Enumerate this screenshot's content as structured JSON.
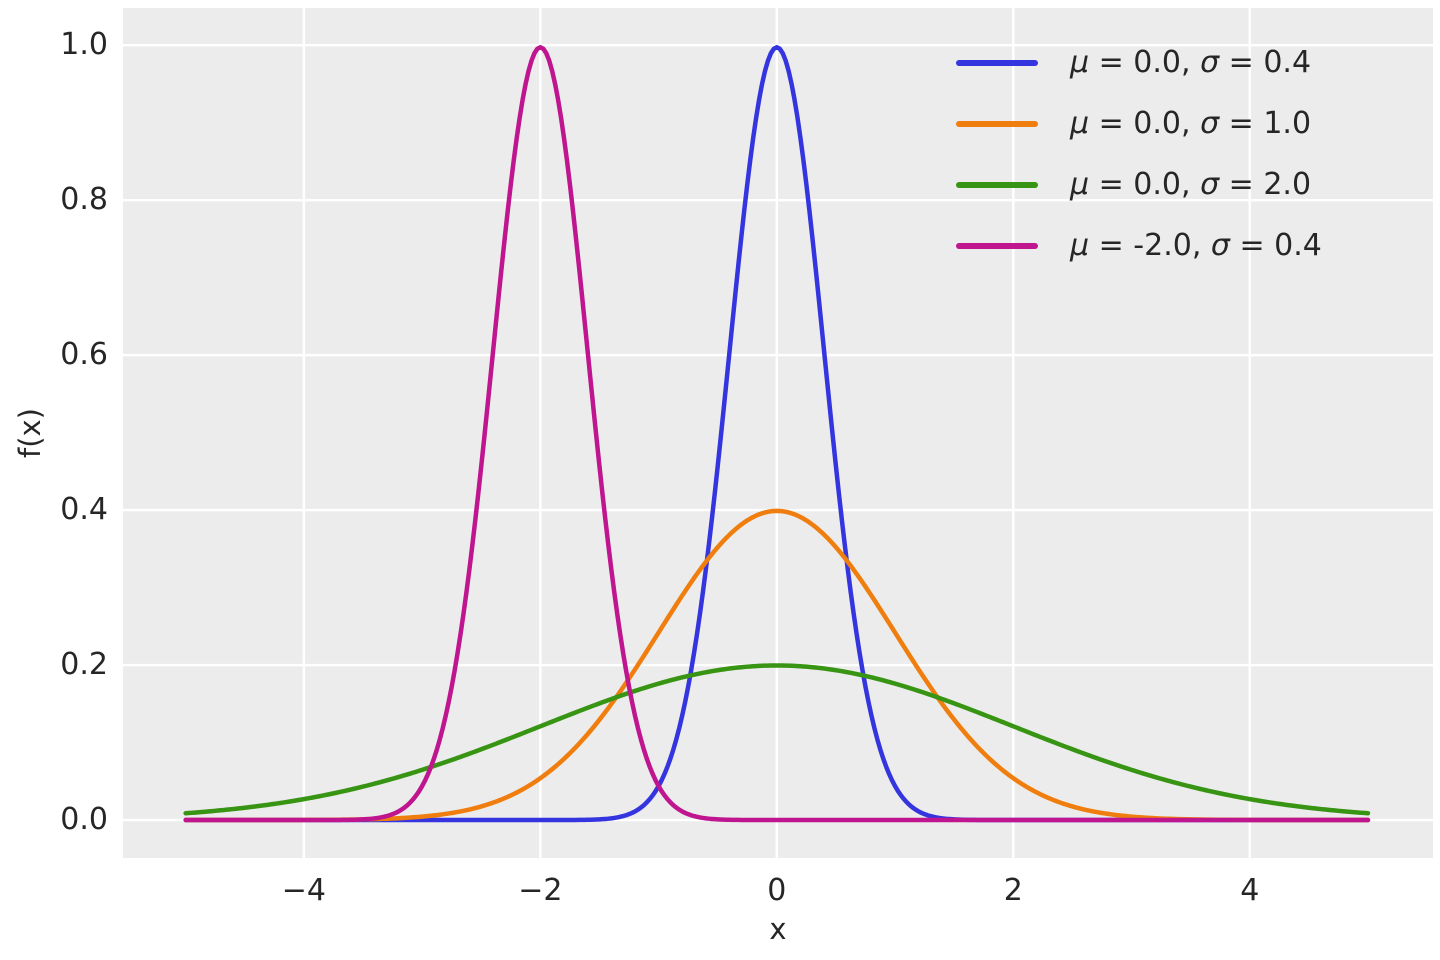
{
  "figure": {
    "background_color": "#ffffff",
    "panel_background_color": "#ECECEC",
    "grid_color": "#ffffff",
    "text_color": "#262626"
  },
  "chart_data": {
    "type": "line",
    "title": "",
    "xlabel": "x",
    "ylabel": "f(x)",
    "grid": true,
    "legend_position": "upper right",
    "legend_frame": false,
    "xlim": [
      -5.53,
      5.55
    ],
    "ylim": [
      -0.049,
      1.048
    ],
    "x_data_range": [
      -5,
      5
    ],
    "x_ticks": [
      {
        "value": -4,
        "label": "−4"
      },
      {
        "value": -2,
        "label": "−2"
      },
      {
        "value": 0,
        "label": "0"
      },
      {
        "value": 2,
        "label": "2"
      },
      {
        "value": 4,
        "label": "4"
      }
    ],
    "y_ticks": [
      {
        "value": 0.0,
        "label": "0.0"
      },
      {
        "value": 0.2,
        "label": "0.2"
      },
      {
        "value": 0.4,
        "label": "0.4"
      },
      {
        "value": 0.6,
        "label": "0.6"
      },
      {
        "value": 0.8,
        "label": "0.8"
      },
      {
        "value": 1.0,
        "label": "1.0"
      }
    ],
    "series": [
      {
        "name": "normal-pdf-mu-0.0-sigma-0.4",
        "function": "normal_pdf",
        "mu": 0.0,
        "sigma": 0.4,
        "peak_value": 0.997,
        "color": "#3535DF",
        "legend": {
          "mu_symbol": "μ",
          "mu_text": " = 0.0, ",
          "sigma_symbol": "σ",
          "sigma_text": " = 0.4"
        }
      },
      {
        "name": "normal-pdf-mu-0.0-sigma-1.0",
        "function": "normal_pdf",
        "mu": 0.0,
        "sigma": 1.0,
        "peak_value": 0.399,
        "color": "#F07E0E",
        "legend": {
          "mu_symbol": "μ",
          "mu_text": " = 0.0, ",
          "sigma_symbol": "σ",
          "sigma_text": " = 1.0"
        }
      },
      {
        "name": "normal-pdf-mu-0.0-sigma-2.0",
        "function": "normal_pdf",
        "mu": 0.0,
        "sigma": 2.0,
        "peak_value": 0.199,
        "color": "#389413",
        "legend": {
          "mu_symbol": "μ",
          "mu_text": " = 0.0, ",
          "sigma_symbol": "σ",
          "sigma_text": " = 2.0"
        }
      },
      {
        "name": "normal-pdf-mu--2.0-sigma-0.4",
        "function": "normal_pdf",
        "mu": -2.0,
        "sigma": 0.4,
        "peak_value": 0.997,
        "color": "#BF158F",
        "legend": {
          "mu_symbol": "μ",
          "mu_text": " = -2.0, ",
          "sigma_symbol": "σ",
          "sigma_text": " = 0.4"
        }
      }
    ]
  }
}
